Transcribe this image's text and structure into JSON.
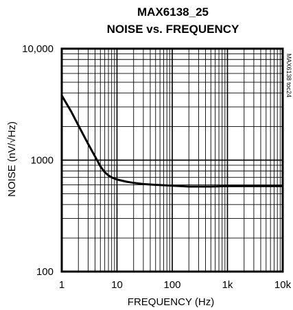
{
  "chart_data": {
    "type": "line",
    "title": "MAX6138_25",
    "subtitle": "NOISE vs. FREQUENCY",
    "xlabel": "FREQUENCY (Hz)",
    "ylabel": "NOISE (nV/√Hz)",
    "figure_id": "MAX6138 toc24",
    "x_scale": "log",
    "y_scale": "log",
    "xlim": [
      1,
      10000
    ],
    "ylim": [
      100,
      10000
    ],
    "x_ticks": [
      {
        "value": 1,
        "label": "1"
      },
      {
        "value": 10,
        "label": "10"
      },
      {
        "value": 100,
        "label": "100"
      },
      {
        "value": 1000,
        "label": "1k"
      },
      {
        "value": 10000,
        "label": "10k"
      }
    ],
    "y_ticks": [
      {
        "value": 100,
        "label": "100"
      },
      {
        "value": 1000,
        "label": "1000"
      },
      {
        "value": 10000,
        "label": "10,000"
      }
    ],
    "grid": true,
    "series": [
      {
        "x": [
          1,
          1.5,
          2,
          3,
          4,
          5,
          6,
          7,
          8,
          10,
          15,
          20,
          30,
          50,
          100,
          200,
          500,
          1000,
          2000,
          5000,
          10000
        ],
        "y": [
          3800,
          2700,
          2050,
          1400,
          1080,
          880,
          780,
          730,
          700,
          670,
          640,
          625,
          610,
          600,
          590,
          580,
          580,
          585,
          585,
          585,
          585
        ]
      }
    ]
  }
}
